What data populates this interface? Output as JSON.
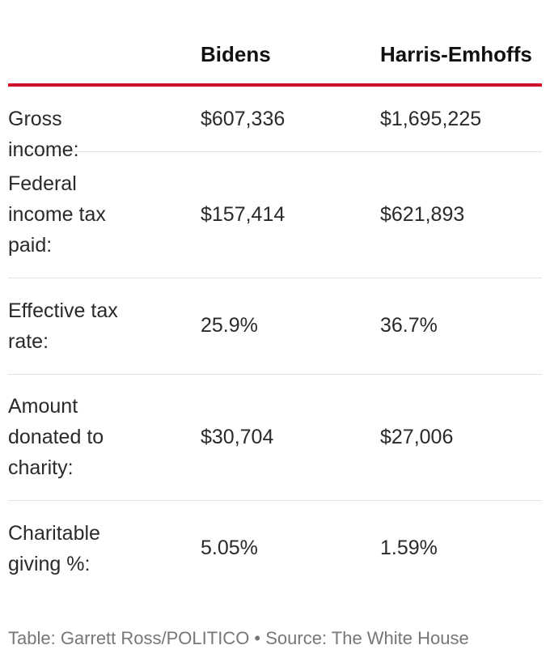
{
  "chart_data": {
    "type": "table",
    "columns": [
      "",
      "Bidens",
      "Harris-Emhoffs"
    ],
    "rows": [
      {
        "label": "Gross income:",
        "values": [
          "$607,336",
          "$1,695,225"
        ]
      },
      {
        "label": "Federal income tax paid:",
        "values": [
          "$157,414",
          "$621,893"
        ]
      },
      {
        "label": "Effective tax rate:",
        "values": [
          "25.9%",
          "36.7%"
        ]
      },
      {
        "label": "Amount donated to charity:",
        "values": [
          "$30,704",
          "$27,006"
        ]
      },
      {
        "label": "Charitable giving %:",
        "values": [
          "5.05%",
          "1.59%"
        ]
      }
    ],
    "caption": "Table: Garrett Ross/POLITICO • Source: The White House"
  },
  "colors": {
    "header_rule": "#d0112b",
    "row_divider": "#e3e3e3",
    "caption_text": "#777777"
  }
}
